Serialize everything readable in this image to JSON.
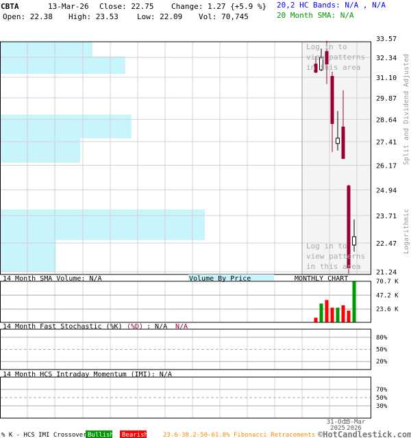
{
  "header": {
    "symbol": "CBTA",
    "date": "13-Mar-26",
    "close": "Close: 22.75",
    "change": "Change: 1.27 {+5.9 %}",
    "open": "Open: 22.38",
    "high": "High: 23.53",
    "low": "Low: 22.09",
    "vol": "Vol: 70,745",
    "hc_bands": "20,2 HC Bands: N/A , N/A",
    "sma": "20 Month SMA: N/A"
  },
  "colors": {
    "up": "#000000",
    "down": "#990033",
    "vol_up": "#009900",
    "vol_down": "#ff0000",
    "vbp": "#c8f4fc",
    "bands": "#0000ff",
    "sma": "#009900",
    "fib": "#ff8800",
    "bullish": "#009900",
    "bearish": "#ff0000"
  },
  "chart_data": [
    {
      "type": "candlestick",
      "title": "MONTHLY CHART",
      "scale": "log",
      "ylim": [
        21.24,
        33.57
      ],
      "y_ticks": [
        "33.57",
        "32.34",
        "31.10",
        "29.87",
        "28.64",
        "27.41",
        "26.17",
        "24.94",
        "23.71",
        "22.47",
        "21.24"
      ],
      "y_label_top": "Split and Dividend Adjusted",
      "y_label_bottom": "Logarithmic",
      "watermark": "Log in to view patterns in this area",
      "x_ticks": [
        {
          "label": "31-Oct",
          "year": "2025",
          "index": 4
        },
        {
          "label": "13-Mar",
          "year": "2026",
          "index": 7
        }
      ],
      "candles": [
        {
          "o": 31.94,
          "h": 32.42,
          "l": 31.35,
          "c": 31.39
        },
        {
          "o": 31.56,
          "h": 32.9,
          "l": 31.48,
          "c": 32.33
        },
        {
          "o": 32.74,
          "h": 33.41,
          "l": 30.69,
          "c": 31.9
        },
        {
          "o": 31.18,
          "h": 31.44,
          "l": 26.86,
          "c": 28.38
        },
        {
          "o": 27.31,
          "h": 29.11,
          "l": 26.94,
          "c": 27.6
        },
        {
          "o": 28.23,
          "h": 30.32,
          "l": 26.5,
          "c": 26.5
        },
        {
          "o": 25.15,
          "h": 25.2,
          "l": 21.16,
          "c": 21.38
        },
        {
          "o": 22.38,
          "h": 23.53,
          "l": 22.09,
          "c": 22.75
        }
      ],
      "volume_by_price": {
        "label": "Volume By Price",
        "bands": [
          {
            "from": 32.4,
            "to": 33.4,
            "rel": 0.45
          },
          {
            "from": 31.3,
            "to": 32.4,
            "rel": 0.61
          },
          {
            "from": 27.6,
            "to": 28.9,
            "rel": 0.64
          },
          {
            "from": 26.3,
            "to": 27.6,
            "rel": 0.39
          },
          {
            "from": 22.6,
            "to": 24.0,
            "rel": 1.0
          },
          {
            "from": 21.24,
            "to": 22.6,
            "rel": 0.27
          }
        ]
      }
    },
    {
      "type": "bar",
      "title": "14 Month SMA Volume: N/A",
      "ylim": [
        0,
        70700
      ],
      "y_ticks": [
        "70.7 K",
        "47.2 K",
        "23.6 K"
      ],
      "y_tick_values": [
        70700,
        47200,
        23600
      ],
      "values": [
        9000,
        33000,
        39000,
        26000,
        26000,
        30000,
        21000,
        70745
      ],
      "direction": [
        "down",
        "up",
        "down",
        "down",
        "up",
        "down",
        "down",
        "up"
      ]
    },
    {
      "type": "line",
      "title": "14 Month Fast Stochastic (%K)",
      "title_d": "(%D)",
      "value_k": ": N/A",
      "value_d": "N/A",
      "ylim": [
        0,
        100
      ],
      "y_ticks": [
        "80%",
        "50%",
        "20%"
      ],
      "y_tick_values": [
        80,
        50,
        20
      ]
    },
    {
      "type": "line",
      "title": "14 Month HCS Intraday Momentum (IMI): N/A",
      "ylim": [
        0,
        100
      ],
      "y_ticks": [
        "70%",
        "50%",
        "30%"
      ],
      "y_tick_values": [
        70,
        50,
        30
      ]
    }
  ],
  "footer": {
    "legend": "% K - HCS IMI Crossover,",
    "bullish": "Bullish",
    "bearish": "Bearish",
    "fib": "23.6-38.2-50-61.8% Fibonacci Retracements",
    "copyright": "©HotCandlestick.com"
  }
}
